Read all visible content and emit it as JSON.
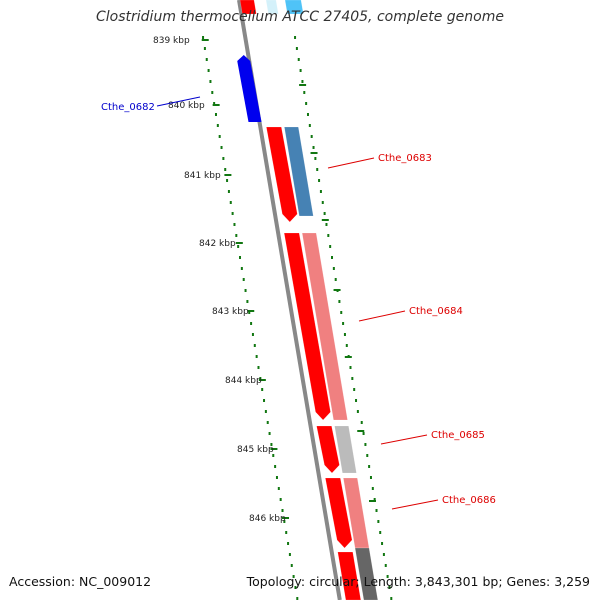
{
  "title": "Clostridium thermocellum ATCC 27405, complete genome",
  "footer": {
    "accession": "Accession: NC_009012",
    "summary": "Topology: circular; Length: 3,843,301 bp; Genes: 3,259"
  },
  "scale": {
    "unit": "kbp",
    "labels": [
      "839 kbp",
      "840 kbp",
      "841 kbp",
      "842 kbp",
      "843 kbp",
      "844 kbp",
      "845 kbp",
      "846 kbp"
    ]
  },
  "genes": [
    {
      "name": "Cthe_0682",
      "strand": "minus",
      "color": "#0000ee",
      "label_color": "#0000cc"
    },
    {
      "name": "Cthe_0683",
      "strand": "plus",
      "color": "#ff0000",
      "cog_color": "#4682b4",
      "label_color": "#dd0000"
    },
    {
      "name": "Cthe_0684",
      "strand": "plus",
      "color": "#ff0000",
      "cog_color": "#f08080",
      "label_color": "#dd0000"
    },
    {
      "name": "Cthe_0685",
      "strand": "plus",
      "color": "#ff0000",
      "cog_color": "#bbbbbb",
      "label_color": "#dd0000"
    },
    {
      "name": "Cthe_0686",
      "strand": "plus",
      "color": "#ff0000",
      "cog_color": "#f08080",
      "label_color": "#dd0000"
    }
  ],
  "colors": {
    "backbone": "#888888",
    "ticks": "#117711"
  }
}
